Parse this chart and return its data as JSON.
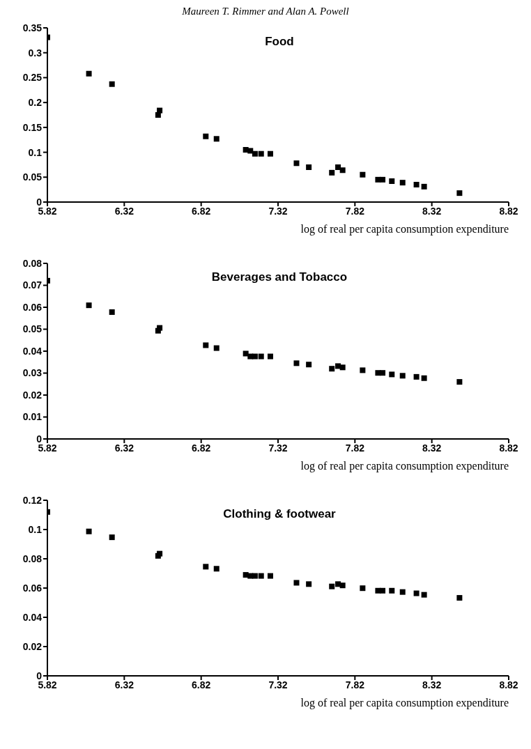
{
  "chart_data": [
    {
      "type": "scatter",
      "title": "Food",
      "annotations": [
        "Maureen T. Rimmer and Alan A. Powell"
      ],
      "xlabel": "log of real per capita consumption expenditure",
      "marker": "square",
      "grid": false,
      "legend": false,
      "xlim": [
        5.82,
        8.82
      ],
      "xticks": [
        5.82,
        6.32,
        6.82,
        7.32,
        7.82,
        8.32,
        8.82
      ],
      "ylim": [
        0,
        0.35
      ],
      "yticks": [
        0,
        0.05,
        0.1,
        0.15,
        0.2,
        0.25,
        0.3,
        0.35
      ],
      "x": [
        5.82,
        6.09,
        6.24,
        6.54,
        6.55,
        6.85,
        6.92,
        7.11,
        7.14,
        7.17,
        7.21,
        7.27,
        7.44,
        7.52,
        7.67,
        7.71,
        7.74,
        7.87,
        7.97,
        8.0,
        8.06,
        8.13,
        8.22,
        8.27,
        8.5
      ],
      "series": [
        {
          "color": "#000000",
          "values": [
            0.331,
            0.258,
            0.237,
            0.175,
            0.184,
            0.132,
            0.127,
            0.105,
            0.103,
            0.097,
            0.097,
            0.097,
            0.078,
            0.07,
            0.059,
            0.07,
            0.064,
            0.055,
            0.045,
            0.045,
            0.042,
            0.039,
            0.035,
            0.031,
            0.018
          ]
        }
      ]
    },
    {
      "type": "scatter",
      "title": "Beverages and Tobacco",
      "xlabel": "log of real per capita consumption expenditure",
      "marker": "square",
      "grid": false,
      "legend": false,
      "xlim": [
        5.82,
        8.82
      ],
      "xticks": [
        5.82,
        6.32,
        6.82,
        7.32,
        7.82,
        8.32,
        8.82
      ],
      "ylim": [
        0,
        0.08
      ],
      "yticks": [
        0,
        0.01,
        0.02,
        0.03,
        0.04,
        0.05,
        0.06,
        0.07,
        0.08
      ],
      "x": [
        5.82,
        6.09,
        6.24,
        6.54,
        6.55,
        6.85,
        6.92,
        7.11,
        7.14,
        7.17,
        7.21,
        7.27,
        7.44,
        7.52,
        7.67,
        7.71,
        7.74,
        7.87,
        7.97,
        8.0,
        8.06,
        8.13,
        8.22,
        8.27,
        8.5
      ],
      "series": [
        {
          "color": "#000000",
          "values": [
            0.0721,
            0.0609,
            0.0578,
            0.0493,
            0.0506,
            0.0427,
            0.0414,
            0.0389,
            0.0376,
            0.0376,
            0.0376,
            0.0376,
            0.0345,
            0.0339,
            0.032,
            0.0332,
            0.0326,
            0.0313,
            0.0301,
            0.0301,
            0.0294,
            0.0288,
            0.0283,
            0.0277,
            0.026
          ]
        }
      ]
    },
    {
      "type": "scatter",
      "title": "Clothing & footwear",
      "xlabel": "log of real per capita consumption expenditure",
      "marker": "square",
      "grid": false,
      "legend": false,
      "xlim": [
        5.82,
        8.82
      ],
      "xticks": [
        5.82,
        6.32,
        6.82,
        7.32,
        7.82,
        8.32,
        8.82
      ],
      "ylim": [
        0,
        0.12
      ],
      "yticks": [
        0,
        0.02,
        0.04,
        0.06,
        0.08,
        0.1,
        0.12
      ],
      "x": [
        5.82,
        6.09,
        6.24,
        6.54,
        6.55,
        6.85,
        6.92,
        7.11,
        7.14,
        7.17,
        7.21,
        7.27,
        7.44,
        7.52,
        7.67,
        7.71,
        7.74,
        7.87,
        7.97,
        8.0,
        8.06,
        8.13,
        8.22,
        8.27,
        8.5
      ],
      "series": [
        {
          "color": "#000000",
          "values": [
            0.112,
            0.0987,
            0.0947,
            0.082,
            0.0835,
            0.0746,
            0.0732,
            0.069,
            0.0683,
            0.0683,
            0.0683,
            0.0683,
            0.0636,
            0.0627,
            0.0611,
            0.0627,
            0.0618,
            0.0599,
            0.0582,
            0.0582,
            0.0582,
            0.0573,
            0.0564,
            0.0554,
            0.0533
          ]
        }
      ]
    }
  ]
}
